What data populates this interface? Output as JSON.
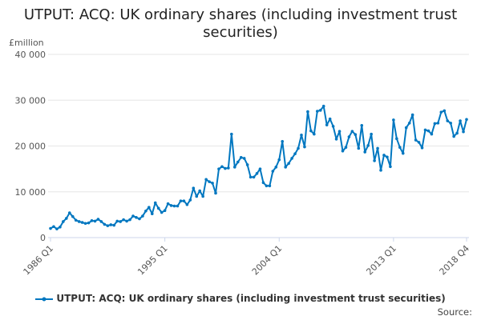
{
  "chart_data": {
    "type": "line",
    "title": "UTPUT: ACQ: UK ordinary shares (including investment trust securities)",
    "ylabel": "£million",
    "ylim": [
      0,
      40000
    ],
    "yticks": [
      0,
      10000,
      20000,
      30000,
      40000
    ],
    "ytick_labels": [
      "0",
      "10 000",
      "20 000",
      "30 000",
      "40 000"
    ],
    "xtick_labels": [
      "1986 Q1",
      "1995 Q1",
      "2004 Q1",
      "2013 Q1",
      "2018 Q4"
    ],
    "xtick_index": [
      0,
      36,
      72,
      108,
      131
    ],
    "grid": true,
    "legend_position": "bottom",
    "series": [
      {
        "name": "UTPUT: ACQ: UK ordinary shares (including investment trust securities)",
        "color": "#0077c0",
        "start": "1986 Q1",
        "frequency": "quarterly",
        "values": [
          2000,
          2400,
          1900,
          2300,
          3500,
          4200,
          5400,
          4600,
          3800,
          3500,
          3300,
          3100,
          3200,
          3700,
          3600,
          4000,
          3500,
          2900,
          2600,
          2800,
          2700,
          3600,
          3500,
          3900,
          3600,
          3900,
          4700,
          4400,
          4100,
          4700,
          5800,
          6600,
          5200,
          7600,
          6400,
          5500,
          5900,
          7400,
          7000,
          6900,
          6900,
          8000,
          8000,
          7200,
          8200,
          10800,
          9000,
          10200,
          9000,
          12700,
          12200,
          11900,
          9700,
          15000,
          15500,
          15100,
          15200,
          22600,
          15400,
          16500,
          17500,
          17300,
          15900,
          13200,
          13200,
          14000,
          15000,
          12000,
          11300,
          11300,
          14500,
          15400,
          17000,
          21000,
          15400,
          16200,
          17300,
          18300,
          19500,
          22400,
          19800,
          27500,
          23300,
          22600,
          27600,
          27800,
          28700,
          24600,
          25900,
          24300,
          21500,
          23200,
          18900,
          19700,
          22000,
          23200,
          22500,
          19500,
          24500,
          18700,
          20100,
          22600,
          16800,
          19500,
          14700,
          18000,
          17600,
          15500,
          25700,
          21600,
          19700,
          18400,
          24000,
          25000,
          26800,
          21300,
          20800,
          19600,
          23500,
          23300,
          22600,
          24900,
          25000,
          27400,
          27700,
          25500,
          25000,
          22100,
          22800,
          25500,
          23100,
          25800
        ]
      }
    ]
  },
  "source_label": "Source:"
}
